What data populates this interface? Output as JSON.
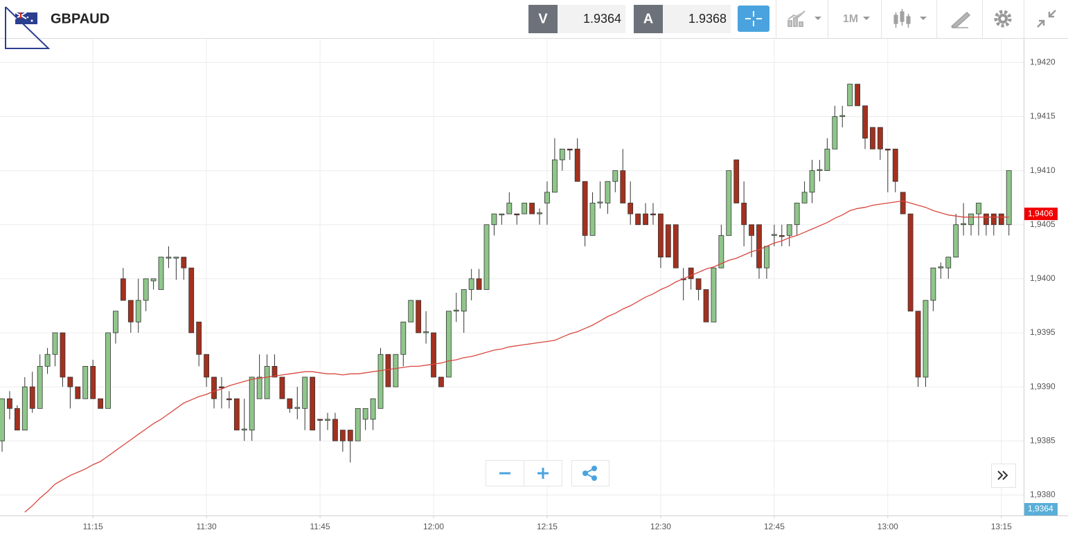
{
  "header": {
    "symbol": "GBPAUD",
    "sell": {
      "label": "V",
      "price": "1.9364"
    },
    "buy": {
      "label": "A",
      "price": "1.9368"
    },
    "timeframe": "1M"
  },
  "chart_data": {
    "type": "candlestick",
    "x": [
      "11:03",
      "11:04",
      "11:05",
      "11:06",
      "11:07",
      "11:08",
      "11:09",
      "11:10",
      "11:11",
      "11:12",
      "11:13",
      "11:14",
      "11:15",
      "11:16",
      "11:17",
      "11:18",
      "11:19",
      "11:20",
      "11:21",
      "11:22",
      "11:23",
      "11:24",
      "11:25",
      "11:26",
      "11:27",
      "11:28",
      "11:29",
      "11:30",
      "11:31",
      "11:32",
      "11:33",
      "11:34",
      "11:35",
      "11:36",
      "11:37",
      "11:38",
      "11:39",
      "11:40",
      "11:41",
      "11:42",
      "11:43",
      "11:44",
      "11:45",
      "11:46",
      "11:47",
      "11:48",
      "11:49",
      "11:50",
      "11:51",
      "11:52",
      "11:53",
      "11:54",
      "11:55",
      "11:56",
      "11:57",
      "11:58",
      "11:59",
      "12:00",
      "12:01",
      "12:02",
      "12:03",
      "12:04",
      "12:05",
      "12:06",
      "12:07",
      "12:08",
      "12:09",
      "12:10",
      "12:11",
      "12:12",
      "12:13",
      "12:14",
      "12:15",
      "12:16",
      "12:17",
      "12:18",
      "12:19",
      "12:20",
      "12:21",
      "12:22",
      "12:23",
      "12:24",
      "12:25",
      "12:26",
      "12:27",
      "12:28",
      "12:29",
      "12:30",
      "12:31",
      "12:32",
      "12:33",
      "12:34",
      "12:35",
      "12:36",
      "12:37",
      "12:38",
      "12:39",
      "12:40",
      "12:41",
      "12:42",
      "12:43",
      "12:44",
      "12:45",
      "12:46",
      "12:47",
      "12:48",
      "12:49",
      "12:50",
      "12:51",
      "12:52",
      "12:53",
      "12:54",
      "12:55",
      "12:56",
      "12:57",
      "12:58",
      "12:59",
      "13:00",
      "13:01",
      "13:02",
      "13:03",
      "13:04",
      "13:05",
      "13:06",
      "13:07",
      "13:08",
      "13:09",
      "13:10",
      "13:11",
      "13:12",
      "13:13",
      "13:14",
      "13:15",
      "13:16"
    ],
    "open": [
      1.9385,
      1.93889,
      1.9388,
      1.9386,
      1.939,
      1.9388,
      1.93919,
      1.9393,
      1.9395,
      1.93909,
      1.939,
      1.93889,
      1.93919,
      1.93889,
      1.9388,
      1.9395,
      1.94,
      1.9398,
      1.9396,
      1.9398,
      1.93998,
      1.9399,
      1.94019,
      1.94019,
      1.9402,
      1.9401,
      1.9396,
      1.9393,
      1.93909,
      1.939,
      1.93889,
      1.93889,
      1.9386,
      1.9386,
      1.93889,
      1.93889,
      1.93919,
      1.93909,
      1.93889,
      1.9388,
      1.9388,
      1.93909,
      1.9387,
      1.93869,
      1.9387,
      1.9386,
      1.9386,
      1.9385,
      1.9387,
      1.9387,
      1.9388,
      1.9393,
      1.939,
      1.9393,
      1.9396,
      1.9398,
      1.9395,
      1.9395,
      1.93909,
      1.93909,
      1.9397,
      1.9397,
      1.9399,
      1.94,
      1.9399,
      1.9405,
      1.94059,
      1.9406,
      1.9406,
      1.9406,
      1.9407,
      1.9406,
      1.9407,
      1.9408,
      1.9411,
      1.9412,
      1.9412,
      1.9409,
      1.9404,
      1.9407,
      1.9407,
      1.9409,
      1.941,
      1.9407,
      1.9406,
      1.9406,
      1.9406,
      1.9406,
      1.9405,
      1.9405,
      1.94,
      1.9401,
      1.94,
      1.9399,
      1.9396,
      1.9401,
      1.9404,
      1.9411,
      1.9407,
      1.9405,
      1.9405,
      1.9401,
      1.9404,
      1.9404,
      1.9404,
      1.9405,
      1.9407,
      1.9408,
      1.941,
      1.941,
      1.9412,
      1.9415,
      1.9416,
      1.9418,
      1.9416,
      1.9414,
      1.9414,
      1.9412,
      1.9412,
      1.9408,
      1.9406,
      1.9397,
      1.93909,
      1.9398,
      1.9401,
      1.9401,
      1.9402,
      1.9405,
      1.9405,
      1.9406,
      1.9406,
      1.9406,
      1.9406,
      1.9405
    ],
    "high": [
      1.93889,
      1.93896,
      1.93883,
      1.93909,
      1.93914,
      1.9393,
      1.93936,
      1.9395,
      1.9395,
      1.93909,
      1.939,
      1.93919,
      1.93925,
      1.93889,
      1.9395,
      1.9397,
      1.9401,
      1.9398,
      1.94,
      1.94,
      1.94,
      1.9402,
      1.9403,
      1.9402,
      1.9402,
      1.9401,
      1.9396,
      1.9393,
      1.93909,
      1.93909,
      1.93896,
      1.93889,
      1.93889,
      1.93909,
      1.9393,
      1.9393,
      1.9393,
      1.93909,
      1.93889,
      1.939,
      1.93909,
      1.93909,
      1.9387,
      1.93876,
      1.93876,
      1.9386,
      1.9386,
      1.9388,
      1.9388,
      1.93889,
      1.93936,
      1.9393,
      1.9393,
      1.9396,
      1.9398,
      1.9398,
      1.9397,
      1.9395,
      1.93909,
      1.9397,
      1.93987,
      1.9399,
      1.94009,
      1.94009,
      1.9405,
      1.9406,
      1.9406,
      1.9408,
      1.9406,
      1.9407,
      1.9407,
      1.94065,
      1.9409,
      1.9413,
      1.9412,
      1.9412,
      1.9413,
      1.9409,
      1.9408,
      1.9409,
      1.9409,
      1.941,
      1.9412,
      1.9409,
      1.9406,
      1.9407,
      1.9407,
      1.9406,
      1.9405,
      1.9405,
      1.9401,
      1.9401,
      1.94,
      1.9399,
      1.9401,
      1.9405,
      1.941,
      1.9411,
      1.9409,
      1.9405,
      1.9405,
      1.9403,
      1.9405,
      1.9405,
      1.9405,
      1.9407,
      1.9409,
      1.9411,
      1.9411,
      1.9413,
      1.9416,
      1.9416,
      1.9418,
      1.9418,
      1.9416,
      1.9414,
      1.9414,
      1.9412,
      1.9412,
      1.9408,
      1.9406,
      1.9397,
      1.9398,
      1.9401,
      1.94015,
      1.9402,
      1.9406,
      1.9407,
      1.9406,
      1.9407,
      1.9406,
      1.9406,
      1.9406,
      1.941
    ],
    "low": [
      1.9384,
      1.9387,
      1.9386,
      1.9386,
      1.93876,
      1.9388,
      1.93912,
      1.93919,
      1.939,
      1.9388,
      1.93889,
      1.93889,
      1.93889,
      1.9388,
      1.9388,
      1.9394,
      1.9398,
      1.9395,
      1.9395,
      1.9397,
      1.9399,
      1.9399,
      1.9401,
      1.93999,
      1.93999,
      1.9395,
      1.93919,
      1.939,
      1.9388,
      1.9388,
      1.9388,
      1.9386,
      1.9385,
      1.9385,
      1.93889,
      1.93889,
      1.93909,
      1.93889,
      1.93876,
      1.9387,
      1.9386,
      1.9386,
      1.9385,
      1.9386,
      1.9385,
      1.9384,
      1.9383,
      1.9385,
      1.9386,
      1.9386,
      1.9388,
      1.939,
      1.939,
      1.93919,
      1.9396,
      1.9395,
      1.9394,
      1.93909,
      1.939,
      1.93909,
      1.9396,
      1.9395,
      1.9398,
      1.9399,
      1.9399,
      1.9404,
      1.9405,
      1.9406,
      1.9405,
      1.9406,
      1.9406,
      1.9405,
      1.9405,
      1.9408,
      1.941,
      1.9411,
      1.9409,
      1.9403,
      1.9404,
      1.94065,
      1.9406,
      1.9408,
      1.9407,
      1.9405,
      1.9405,
      1.9405,
      1.9405,
      1.9401,
      1.9402,
      1.9401,
      1.9398,
      1.9399,
      1.9398,
      1.9396,
      1.9396,
      1.9401,
      1.9404,
      1.9407,
      1.9403,
      1.9402,
      1.94,
      1.94,
      1.9403,
      1.9403,
      1.9403,
      1.9404,
      1.9407,
      1.9407,
      1.9409,
      1.941,
      1.9412,
      1.9414,
      1.9416,
      1.9416,
      1.9412,
      1.9412,
      1.9411,
      1.9408,
      1.9408,
      1.9406,
      1.9397,
      1.939,
      1.939,
      1.9397,
      1.94,
      1.94,
      1.9402,
      1.9404,
      1.9404,
      1.9404,
      1.9404,
      1.9404,
      1.9405,
      1.9404
    ],
    "close": [
      1.93889,
      1.9388,
      1.9386,
      1.939,
      1.9388,
      1.93919,
      1.9393,
      1.9395,
      1.93909,
      1.939,
      1.93889,
      1.93919,
      1.93889,
      1.9388,
      1.9395,
      1.9397,
      1.9398,
      1.9396,
      1.9398,
      1.94,
      1.94,
      1.9402,
      1.9402,
      1.9402,
      1.9401,
      1.9395,
      1.9393,
      1.93909,
      1.93889,
      1.93899,
      1.93888,
      1.9386,
      1.93861,
      1.93909,
      1.93909,
      1.93919,
      1.93909,
      1.93889,
      1.9388,
      1.93881,
      1.93909,
      1.9386,
      1.93869,
      1.9387,
      1.9385,
      1.9385,
      1.9385,
      1.9388,
      1.9388,
      1.93889,
      1.9393,
      1.939,
      1.9393,
      1.9396,
      1.9398,
      1.9395,
      1.93951,
      1.93909,
      1.939,
      1.9397,
      1.93971,
      1.9399,
      1.94,
      1.9399,
      1.9405,
      1.9406,
      1.9406,
      1.9407,
      1.94059,
      1.9407,
      1.9406,
      1.94061,
      1.9408,
      1.9411,
      1.9412,
      1.94119,
      1.9409,
      1.9404,
      1.9407,
      1.94071,
      1.9409,
      1.941,
      1.9407,
      1.9406,
      1.9405,
      1.9405,
      1.94059,
      1.9402,
      1.9402,
      1.9401,
      1.93999,
      1.94,
      1.9399,
      1.9396,
      1.9401,
      1.9404,
      1.941,
      1.9407,
      1.9405,
      1.9404,
      1.9401,
      1.9403,
      1.94041,
      1.94039,
      1.9405,
      1.9407,
      1.9408,
      1.941,
      1.94101,
      1.9412,
      1.9415,
      1.94151,
      1.9418,
      1.9416,
      1.9413,
      1.9412,
      1.9412,
      1.94119,
      1.9409,
      1.9406,
      1.9397,
      1.93909,
      1.9398,
      1.9401,
      1.94011,
      1.9402,
      1.9405,
      1.94051,
      1.9406,
      1.9407,
      1.9405,
      1.9405,
      1.9405,
      1.941
    ],
    "ma": {
      "color": "#d9463e",
      "values": [
        null,
        null,
        null,
        1.93784,
        1.9379,
        1.93797,
        1.93803,
        1.9381,
        1.93814,
        1.93818,
        1.93821,
        1.93824,
        1.93828,
        1.93831,
        1.93836,
        1.93841,
        1.93846,
        1.93851,
        1.93856,
        1.93861,
        1.93866,
        1.9387,
        1.93875,
        1.9388,
        1.93885,
        1.93888,
        1.93891,
        1.93893,
        1.93896,
        1.93898,
        1.93901,
        1.93903,
        1.93905,
        1.93907,
        1.93908,
        1.93909,
        1.9391,
        1.93911,
        1.93912,
        1.93913,
        1.93914,
        1.93914,
        1.93913,
        1.93912,
        1.93912,
        1.93911,
        1.93912,
        1.93912,
        1.93913,
        1.93914,
        1.93915,
        1.93916,
        1.93917,
        1.93918,
        1.93919,
        1.93919,
        1.9392,
        1.93921,
        1.93922,
        1.93924,
        1.93925,
        1.93927,
        1.93928,
        1.9393,
        1.93932,
        1.93934,
        1.93935,
        1.93937,
        1.93938,
        1.93939,
        1.9394,
        1.93941,
        1.93942,
        1.93943,
        1.93946,
        1.93949,
        1.93951,
        1.93954,
        1.93957,
        1.93961,
        1.93965,
        1.93968,
        1.93972,
        1.93975,
        1.93979,
        1.93983,
        1.93986,
        1.9399,
        1.93993,
        1.93997,
        1.94,
        1.94003,
        1.94006,
        1.94009,
        1.94011,
        1.94014,
        1.94017,
        1.94019,
        1.94022,
        1.94025,
        1.94027,
        1.9403,
        1.94033,
        1.94035,
        1.94038,
        1.9404,
        1.94043,
        1.94046,
        1.94049,
        1.94052,
        1.94056,
        1.94059,
        1.94063,
        1.94065,
        1.94066,
        1.94068,
        1.94069,
        1.9407,
        1.94071,
        1.94072,
        1.9407,
        1.94068,
        1.94066,
        1.94063,
        1.94061,
        1.94059,
        1.94058,
        1.94057,
        1.94057,
        1.94057,
        1.94057,
        1.94057,
        1.94057,
        1.94057
      ]
    },
    "up_color": "#8fc68a",
    "down_color": "#a3311f",
    "wick_color": "#333333",
    "ylim": [
      1.93781,
      1.94222
    ],
    "yticks": [
      {
        "value": 1.938,
        "label": "1,9380"
      },
      {
        "value": 1.9385,
        "label": "1,9385"
      },
      {
        "value": 1.939,
        "label": "1,9390"
      },
      {
        "value": 1.9395,
        "label": "1,9395"
      },
      {
        "value": 1.94,
        "label": "1,9400"
      },
      {
        "value": 1.9405,
        "label": "1,9405"
      },
      {
        "value": 1.941,
        "label": "1,9410"
      },
      {
        "value": 1.9415,
        "label": "1,9415"
      },
      {
        "value": 1.942,
        "label": "1,9420"
      }
    ],
    "xticks": [
      "11:15",
      "11:30",
      "11:45",
      "12:00",
      "12:15",
      "12:30",
      "12:45",
      "13:00",
      "13:15"
    ],
    "grid": true,
    "price_tags": [
      {
        "value": 1.9406,
        "label": "1,9406",
        "color": "#f00000"
      },
      {
        "value": 1.9364,
        "label": "1,9364",
        "color": "#5aaed8"
      }
    ]
  }
}
